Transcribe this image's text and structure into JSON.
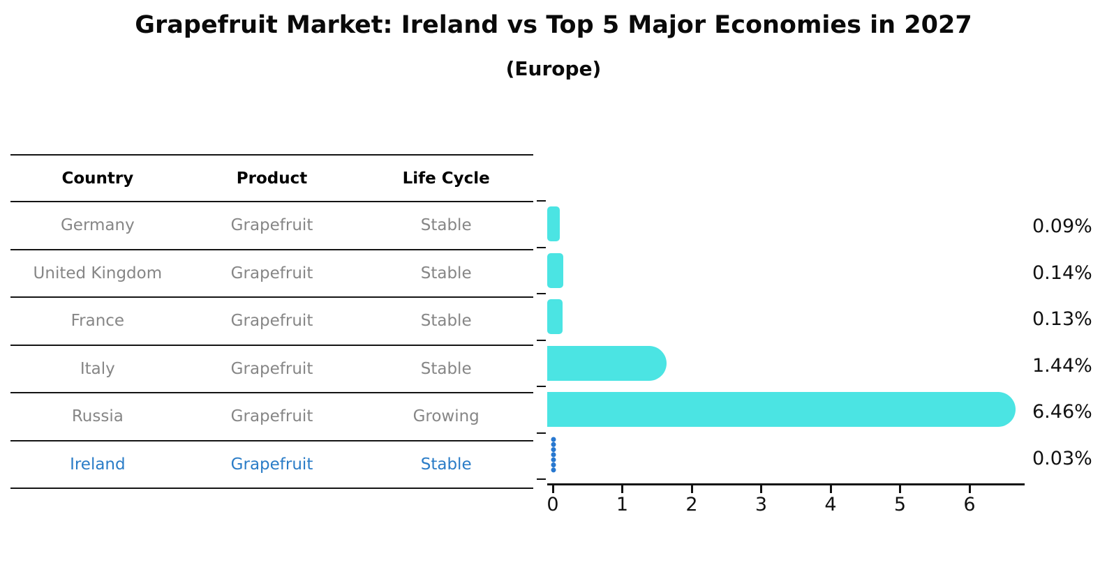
{
  "title": "Grapefruit Market: Ireland vs Top 5 Major Economies in 2027",
  "subtitle": "(Europe)",
  "table": {
    "headers": [
      "Country",
      "Product",
      "Life Cycle"
    ],
    "rows": [
      {
        "country": "Germany",
        "product": "Grapefruit",
        "life_cycle": "Stable",
        "highlight": false
      },
      {
        "country": "United Kingdom",
        "product": "Grapefruit",
        "life_cycle": "Stable",
        "highlight": false
      },
      {
        "country": "France",
        "product": "Grapefruit",
        "life_cycle": "Stable",
        "highlight": false
      },
      {
        "country": "Italy",
        "product": "Grapefruit",
        "life_cycle": "Stable",
        "highlight": false
      },
      {
        "country": "Russia",
        "product": "Grapefruit",
        "life_cycle": "Growing",
        "highlight": false
      },
      {
        "country": "Ireland",
        "product": "Grapefruit",
        "life_cycle": "Stable",
        "highlight": true
      }
    ]
  },
  "chart_data": {
    "type": "bar",
    "orientation": "horizontal",
    "title": "Grapefruit Market: Ireland vs Top 5 Major Economies in 2027",
    "subtitle": "(Europe)",
    "categories": [
      "Germany",
      "United Kingdom",
      "France",
      "Italy",
      "Russia",
      "Ireland"
    ],
    "values": [
      0.09,
      0.14,
      0.13,
      1.44,
      6.46,
      0.03
    ],
    "value_labels": [
      "0.09%",
      "0.14%",
      "0.13%",
      "1.44%",
      "6.46%",
      "0.03%"
    ],
    "x_ticks": [
      "0",
      "1",
      "2",
      "3",
      "4",
      "5",
      "6"
    ],
    "xlim": [
      0,
      6.9
    ],
    "grid": false,
    "legend": false,
    "highlight_index": 5,
    "colors": {
      "bar": "#4be4e3",
      "highlight_marker": "#2878d0",
      "highlight_text": "#2a7cc7",
      "table_text": "#868686",
      "header_text": "#000000",
      "axis": "#111111"
    }
  }
}
